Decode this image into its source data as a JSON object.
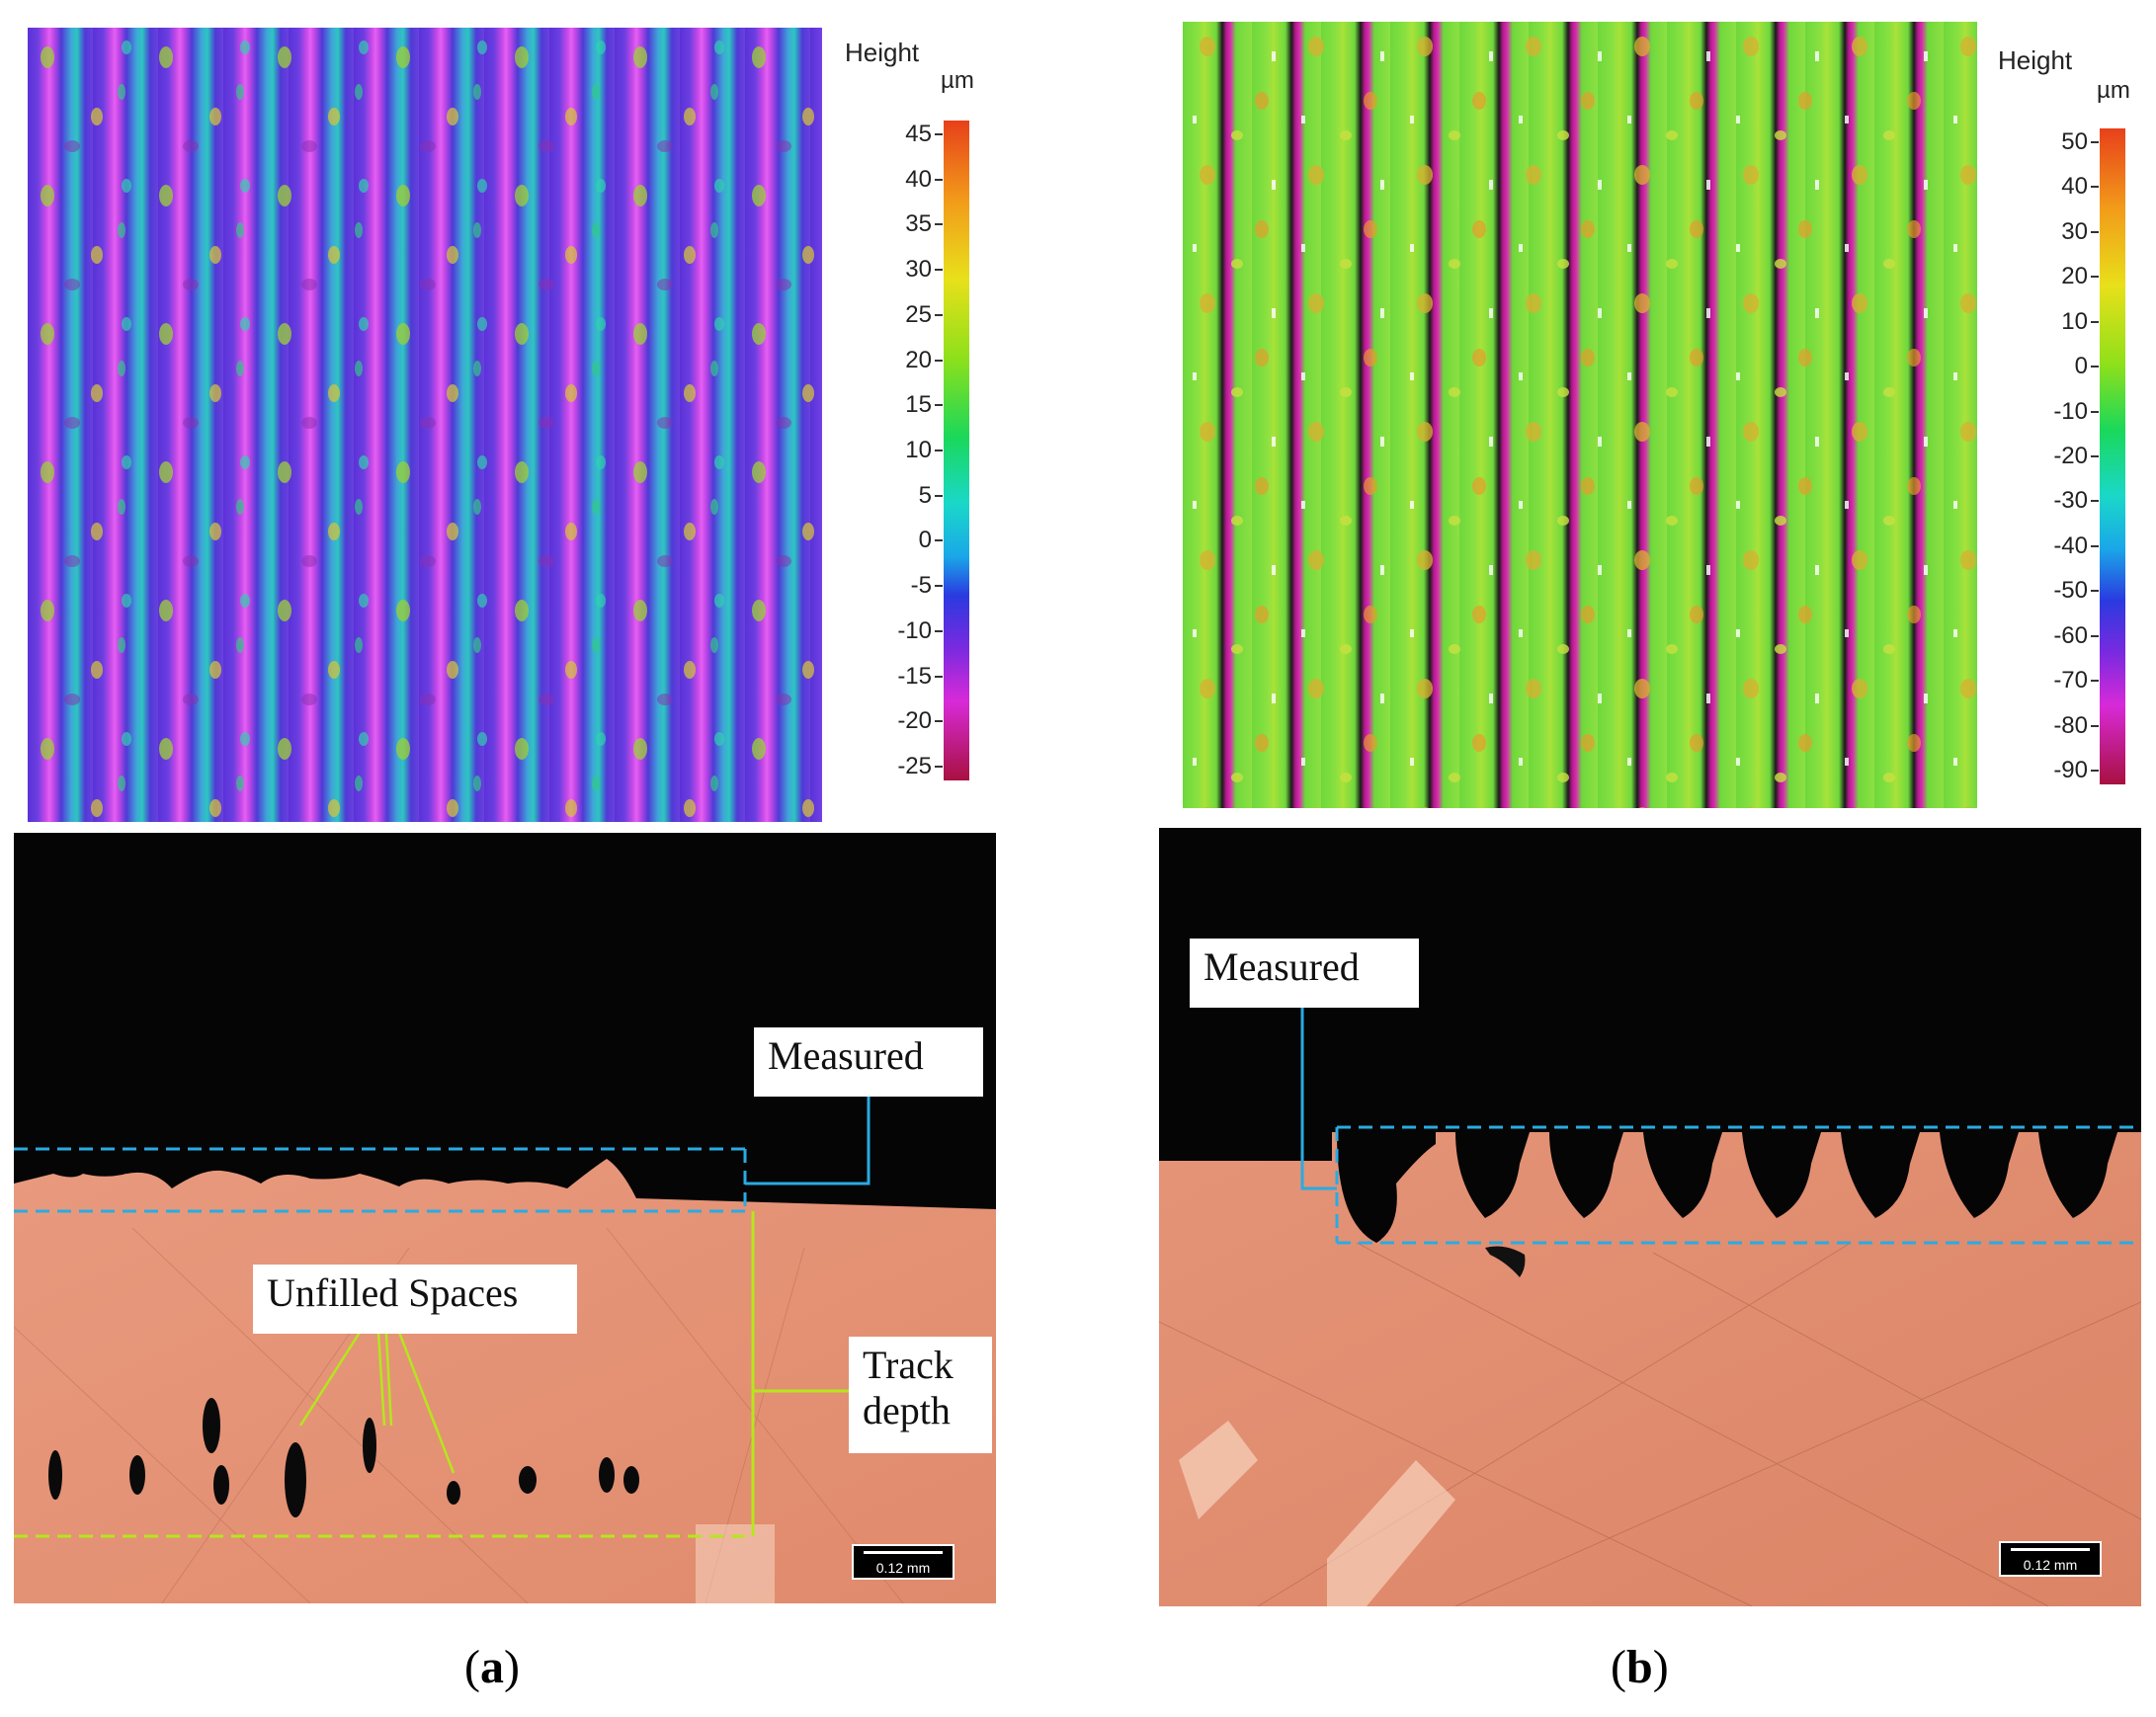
{
  "panel_a": {
    "label_open": "(",
    "label_letter": "a",
    "label_close": ")",
    "height_map": {
      "legend_title": "Height",
      "legend_unit": "µm",
      "ticks": [
        "45",
        "40",
        "35",
        "30",
        "25",
        "20",
        "15",
        "10",
        "5",
        "0",
        "-5",
        "-10",
        "-15",
        "-20",
        "-25"
      ]
    },
    "micrograph": {
      "callout_measured": "Measured",
      "callout_unfilled": "Unfilled Spaces",
      "callout_track_line1": "Track",
      "callout_track_line2": "depth",
      "scale_bar": "0.12 mm"
    }
  },
  "panel_b": {
    "label_open": "(",
    "label_letter": "b",
    "label_close": ")",
    "height_map": {
      "legend_title": "Height",
      "legend_unit": "µm",
      "ticks": [
        "50",
        "40",
        "30",
        "20",
        "10",
        "0",
        "-10",
        "-20",
        "-30",
        "-40",
        "-50",
        "-60",
        "-70",
        "-80",
        "-90"
      ]
    },
    "micrograph": {
      "callout_measured": "Measured",
      "scale_bar": "0.12 mm"
    }
  },
  "colors": {
    "annotation_blue": "#29abe2",
    "annotation_green": "#b5e61d",
    "copper": "#e69a7c",
    "map_a_base": "#6a3fd6",
    "map_b_base": "#6fd83a"
  }
}
